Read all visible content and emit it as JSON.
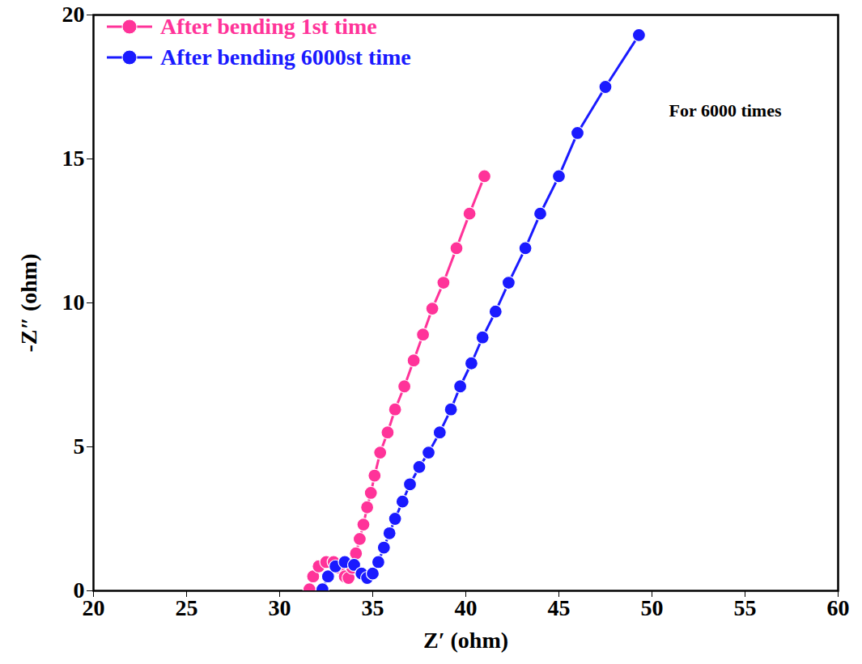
{
  "chart_data": {
    "type": "line",
    "x_label": "Z′ (ohm)",
    "y_label": "-Z″ (ohm)",
    "xlim": [
      20,
      60
    ],
    "xticks": [
      20,
      25,
      30,
      35,
      40,
      45,
      50,
      55,
      60
    ],
    "ylim": [
      0,
      20
    ],
    "yticks": [
      0,
      5,
      10,
      15,
      20
    ],
    "legend": "top-left",
    "annotations": [
      "For 6000 times"
    ],
    "series": [
      {
        "name": "After bending 1st time",
        "color": "#ff3399",
        "marker": "circle",
        "line_style": "solid",
        "x": [
          31.6,
          31.8,
          32.1,
          32.5,
          32.9,
          33.2,
          33.5,
          33.7,
          33.9,
          34.1,
          34.3,
          34.5,
          34.7,
          34.9,
          35.1,
          35.4,
          35.8,
          36.2,
          36.7,
          37.2,
          37.7,
          38.2,
          38.8,
          39.5,
          40.2,
          41.0
        ],
        "values": [
          0.05,
          0.5,
          0.85,
          1.0,
          1.0,
          0.8,
          0.5,
          0.45,
          0.8,
          1.3,
          1.8,
          2.3,
          2.9,
          3.4,
          4.0,
          4.8,
          5.5,
          6.3,
          7.1,
          8.0,
          8.9,
          9.8,
          10.7,
          11.9,
          13.1,
          14.4
        ]
      },
      {
        "name": "After bending 6000st time",
        "color": "#1a1aff",
        "marker": "circle",
        "line_style": "solid",
        "x": [
          32.3,
          32.6,
          33.0,
          33.5,
          34.0,
          34.4,
          34.7,
          35.0,
          35.3,
          35.6,
          35.9,
          36.2,
          36.6,
          37.0,
          37.5,
          38.0,
          38.6,
          39.2,
          39.7,
          40.3,
          40.9,
          41.6,
          42.3,
          43.2,
          44.0,
          45.0,
          46.0,
          47.5,
          49.3
        ],
        "values": [
          0.05,
          0.5,
          0.85,
          1.0,
          0.9,
          0.6,
          0.45,
          0.6,
          1.0,
          1.5,
          2.0,
          2.5,
          3.1,
          3.7,
          4.3,
          4.8,
          5.5,
          6.3,
          7.1,
          7.9,
          8.8,
          9.7,
          10.7,
          11.9,
          13.1,
          14.4,
          15.9,
          17.5,
          19.3
        ]
      }
    ]
  }
}
